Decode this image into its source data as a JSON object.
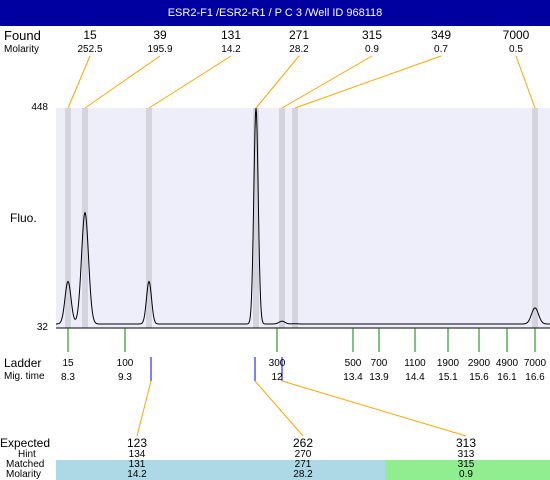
{
  "title": "ESR2-F1 /ESR2-R1 / P C 3 /Well ID 968118",
  "found": {
    "label": "Found",
    "molarity_label": "Molarity",
    "values": [
      "15",
      "39",
      "131",
      "271",
      "315",
      "349",
      "7000"
    ],
    "molarities": [
      "252.5",
      "195.9",
      "14.2",
      "28.2",
      "0.9",
      "0.7",
      "0.5"
    ]
  },
  "axis": {
    "ylabel": "Fluo.",
    "ymax": "448",
    "ymin": "32"
  },
  "ladder": {
    "label": "Ladder",
    "migtime_label": "Mig. time",
    "sizes": [
      "15",
      "100",
      "300",
      "500",
      "700",
      "1100",
      "1900",
      "2900",
      "4900",
      "7000"
    ],
    "times": [
      "8.3",
      "9.3",
      "12",
      "13.4",
      "13.9",
      "14.4",
      "15.1",
      "15.6",
      "16.1",
      "16.6"
    ]
  },
  "expected": {
    "labels": {
      "expected": "Expected",
      "hint": "Hint",
      "matched": "Matched",
      "molarity": "Molarity"
    },
    "columns": [
      {
        "expected": "123",
        "hint": "134",
        "matched": "131",
        "molarity": "14.2"
      },
      {
        "expected": "262",
        "hint": "270",
        "matched": "271",
        "molarity": "28.2"
      },
      {
        "expected": "313",
        "hint": "313",
        "matched": "315",
        "molarity": "0.9"
      }
    ]
  },
  "colors": {
    "title_bg": "#0000a0",
    "plot_bg": "#eeeefb",
    "peak_band": "#d4d4de",
    "leader_line": "#ffa500",
    "ladder_tick": "#008000",
    "marker": "#0000ff",
    "matched_blue": "#add8e6",
    "matched_green": "#90ee90"
  },
  "chart_data": {
    "type": "line",
    "title": "ESR2-F1 /ESR2-R1 / P C 3 /Well ID 968118",
    "ylabel": "Fluo.",
    "ylim": [
      32,
      448
    ],
    "peaks": [
      {
        "size": 15,
        "height": 120
      },
      {
        "size": 39,
        "height": 250
      },
      {
        "size": 131,
        "height": 120
      },
      {
        "size": 271,
        "height": 448
      },
      {
        "size": 315,
        "height": 45
      },
      {
        "size": 349,
        "height": 40
      },
      {
        "size": 7000,
        "height": 70
      }
    ]
  }
}
